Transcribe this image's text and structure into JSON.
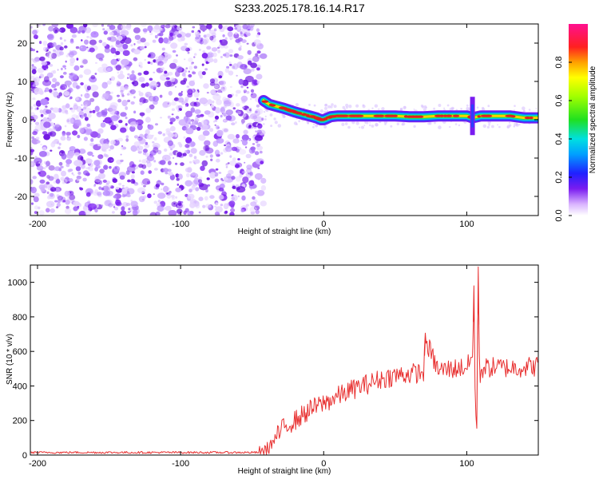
{
  "title": "S233.2025.178.16.14.R17",
  "colors": {
    "snr_line": "#e83030",
    "noise_purple": "#7a1cf0",
    "ridge_red": "#e02020"
  },
  "chart_data": [
    {
      "type": "heatmap",
      "xlabel": "Height of straight line (km)",
      "ylabel": "Frequency (Hz)",
      "xlim": [
        -205,
        150
      ],
      "ylim": [
        -25,
        25
      ],
      "xticks": [
        -200,
        -100,
        0,
        100
      ],
      "yticks": [
        -20,
        -10,
        0,
        10,
        20
      ],
      "colorbar": {
        "label": "Normalized spectral amplitude",
        "range": [
          0.0,
          1.0
        ],
        "ticks": [
          0.0,
          0.2,
          0.4,
          0.6,
          0.8
        ],
        "tick_labels": [
          "0.0",
          "0.2",
          "0.4",
          "0.6",
          "0.8"
        ],
        "colormap": "gist_ncar-like (white-purple-blue-cyan-green-yellow-red-magenta)"
      },
      "noise_region_x": [
        -205,
        -42
      ],
      "ridge": {
        "x": [
          -42,
          -38,
          -33,
          -28,
          -24,
          -20,
          -15,
          -10,
          -5,
          -2,
          0,
          5,
          10,
          20,
          30,
          40,
          50,
          60,
          70,
          80,
          90,
          100,
          104,
          110,
          120,
          130,
          140,
          150
        ],
        "frequency": [
          5,
          4,
          3.5,
          3,
          2.5,
          2,
          1.5,
          1,
          0.5,
          0,
          0,
          0.8,
          1,
          1,
          1,
          1,
          1,
          0.8,
          0.8,
          1,
          1,
          1,
          0.5,
          1,
          1,
          1,
          0.5,
          0.5
        ]
      },
      "spike": {
        "x": 104,
        "frequency_range": [
          -4,
          6
        ]
      }
    },
    {
      "type": "line",
      "xlabel": "Height of straight line (km)",
      "ylabel": "SNR (10 * v/v)",
      "xlim": [
        -205,
        150
      ],
      "ylim": [
        0,
        1100
      ],
      "xticks": [
        -200,
        -100,
        0,
        100
      ],
      "yticks": [
        0,
        200,
        400,
        600,
        800,
        1000
      ],
      "series": [
        {
          "x": [
            -205,
            -180,
            -150,
            -120,
            -100,
            -80,
            -60,
            -45,
            -40,
            -35,
            -30,
            -25,
            -20,
            -15,
            -10,
            -5,
            0,
            10,
            20,
            30,
            40,
            50,
            60,
            70,
            71,
            80,
            90,
            100,
            104,
            105,
            106,
            107,
            108,
            109,
            110,
            120,
            130,
            140,
            150
          ],
          "y": [
            15,
            15,
            15,
            15,
            15,
            15,
            15,
            15,
            30,
            80,
            140,
            180,
            200,
            230,
            260,
            280,
            300,
            340,
            380,
            410,
            440,
            460,
            470,
            480,
            670,
            490,
            500,
            510,
            560,
            980,
            250,
            170,
            1090,
            420,
            500,
            510,
            505,
            510,
            515
          ],
          "noise_amplitude": 40
        }
      ]
    }
  ]
}
